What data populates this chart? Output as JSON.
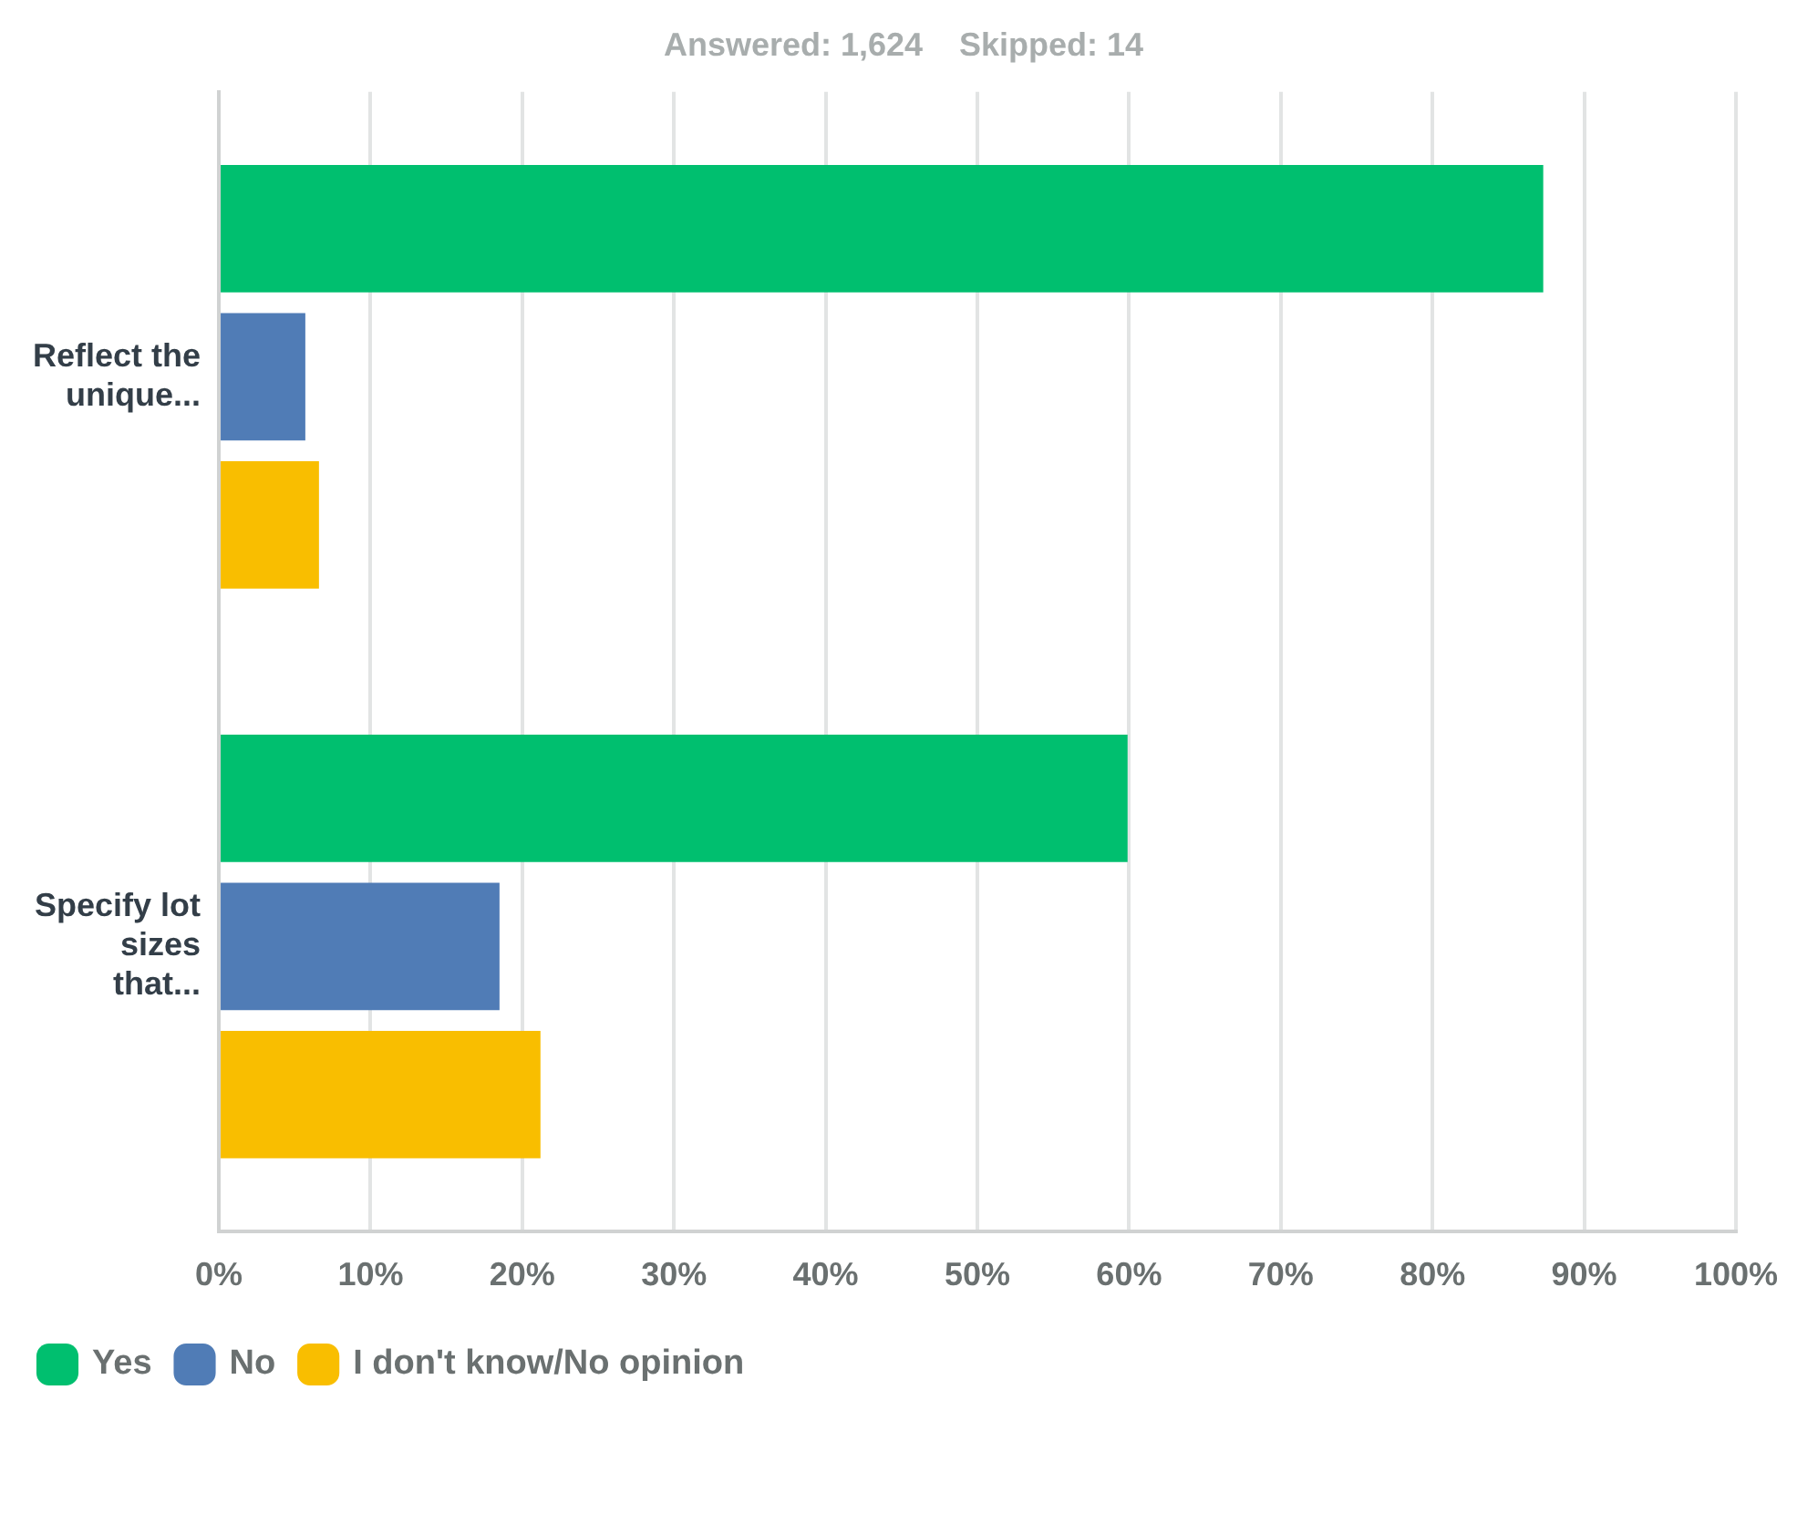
{
  "chart_data": {
    "type": "bar",
    "orientation": "horizontal",
    "subtitle": "Answered: 1,624    Skipped: 14",
    "categories": [
      "Reflect the unique...",
      "Specify lot sizes that..."
    ],
    "series": [
      {
        "name": "Yes",
        "color": "#00bf6f",
        "values": [
          87.3,
          59.9
        ]
      },
      {
        "name": "No",
        "color": "#507cb6",
        "values": [
          5.7,
          18.5
        ]
      },
      {
        "name": "I don't know/No opinion",
        "color": "#f9be00",
        "values": [
          6.6,
          21.2
        ]
      }
    ],
    "xlim": [
      0,
      100
    ],
    "xticks": [
      {
        "value": 0,
        "label": "0%"
      },
      {
        "value": 10,
        "label": "10%"
      },
      {
        "value": 20,
        "label": "20%"
      },
      {
        "value": 30,
        "label": "30%"
      },
      {
        "value": 40,
        "label": "40%"
      },
      {
        "value": 50,
        "label": "50%"
      },
      {
        "value": 60,
        "label": "60%"
      },
      {
        "value": 70,
        "label": "70%"
      },
      {
        "value": 80,
        "label": "80%"
      },
      {
        "value": 90,
        "label": "90%"
      },
      {
        "value": 100,
        "label": "100%"
      }
    ],
    "grid": "x",
    "legend": "bottom left"
  }
}
